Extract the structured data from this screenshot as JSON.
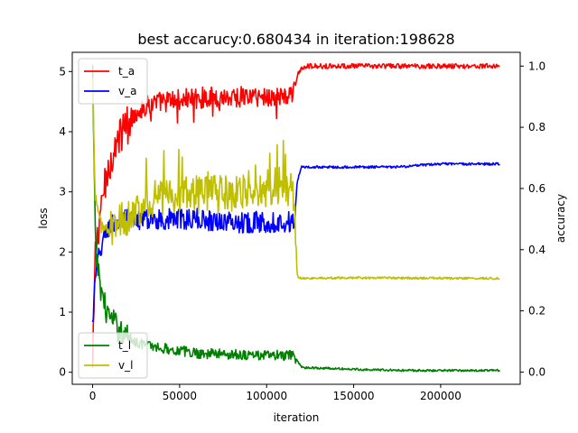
{
  "chart_data": {
    "type": "line",
    "title": "best accarucy:0.680434 in iteration:198628",
    "xlabel": "iteration",
    "ylabel_left": "loss",
    "ylabel_right": "accuracy",
    "xlim": [
      -11700,
      245700
    ],
    "ylim_left": [
      -0.2,
      5.32
    ],
    "ylim_right": [
      -0.04,
      1.045
    ],
    "x_ticks": [
      0,
      50000,
      100000,
      150000,
      200000
    ],
    "x_tick_labels": [
      "0",
      "50000",
      "100000",
      "150000",
      "200000"
    ],
    "y_left_ticks": [
      0,
      1,
      2,
      3,
      4,
      5
    ],
    "y_left_tick_labels": [
      "0",
      "1",
      "2",
      "3",
      "4",
      "5"
    ],
    "y_right_ticks": [
      0.0,
      0.2,
      0.4,
      0.6,
      0.8,
      1.0
    ],
    "y_right_tick_labels": [
      "0.0",
      "0.2",
      "0.4",
      "0.6",
      "0.8",
      "1.0"
    ],
    "grid": false,
    "x_range": [
      0,
      234000
    ],
    "series": [
      {
        "name": "t_a",
        "axis": "right",
        "color": "#ff0000",
        "legend": "upper-left",
        "points": [
          [
            0,
            0.0
          ],
          [
            800,
            0.2
          ],
          [
            1500,
            0.38
          ],
          [
            3000,
            0.45
          ],
          [
            5000,
            0.55
          ],
          [
            8000,
            0.64
          ],
          [
            12000,
            0.72
          ],
          [
            18000,
            0.8
          ],
          [
            25000,
            0.85
          ],
          [
            35000,
            0.88
          ],
          [
            50000,
            0.89
          ],
          [
            70000,
            0.9
          ],
          [
            90000,
            0.9
          ],
          [
            115000,
            0.9
          ],
          [
            118000,
            0.98
          ],
          [
            122000,
            1.0
          ],
          [
            150000,
            1.0
          ],
          [
            234000,
            1.0
          ]
        ]
      },
      {
        "name": "v_a",
        "axis": "right",
        "color": "#0000ff",
        "legend": "upper-left",
        "points": [
          [
            0,
            0.15
          ],
          [
            1500,
            0.3
          ],
          [
            3000,
            0.36
          ],
          [
            6000,
            0.43
          ],
          [
            10000,
            0.48
          ],
          [
            20000,
            0.5
          ],
          [
            40000,
            0.5
          ],
          [
            60000,
            0.5
          ],
          [
            80000,
            0.49
          ],
          [
            100000,
            0.49
          ],
          [
            116000,
            0.49
          ],
          [
            117500,
            0.62
          ],
          [
            120000,
            0.67
          ],
          [
            150000,
            0.67
          ],
          [
            175000,
            0.67
          ],
          [
            198628,
            0.68
          ],
          [
            234000,
            0.68
          ]
        ]
      },
      {
        "name": "t_l",
        "axis": "left",
        "color": "#008000",
        "legend": "lower-left",
        "points": [
          [
            0,
            5.0
          ],
          [
            1000,
            3.0
          ],
          [
            2000,
            2.0
          ],
          [
            4000,
            1.5
          ],
          [
            8000,
            1.0
          ],
          [
            15000,
            0.7
          ],
          [
            25000,
            0.5
          ],
          [
            40000,
            0.4
          ],
          [
            60000,
            0.32
          ],
          [
            80000,
            0.3
          ],
          [
            100000,
            0.28
          ],
          [
            116000,
            0.27
          ],
          [
            120000,
            0.08
          ],
          [
            150000,
            0.05
          ],
          [
            180000,
            0.03
          ],
          [
            234000,
            0.03
          ]
        ]
      },
      {
        "name": "v_l",
        "axis": "left",
        "color": "#bfbf00",
        "legend": "lower-left",
        "points": [
          [
            0,
            4.8
          ],
          [
            1500,
            3.0
          ],
          [
            3000,
            2.6
          ],
          [
            6000,
            2.4
          ],
          [
            10000,
            2.35
          ],
          [
            20000,
            2.6
          ],
          [
            35000,
            2.9
          ],
          [
            50000,
            2.95
          ],
          [
            70000,
            2.95
          ],
          [
            90000,
            3.05
          ],
          [
            110000,
            3.1
          ],
          [
            116000,
            3.0
          ],
          [
            117500,
            1.6
          ],
          [
            120000,
            1.56
          ],
          [
            150000,
            1.57
          ],
          [
            234000,
            1.56
          ]
        ]
      }
    ]
  }
}
